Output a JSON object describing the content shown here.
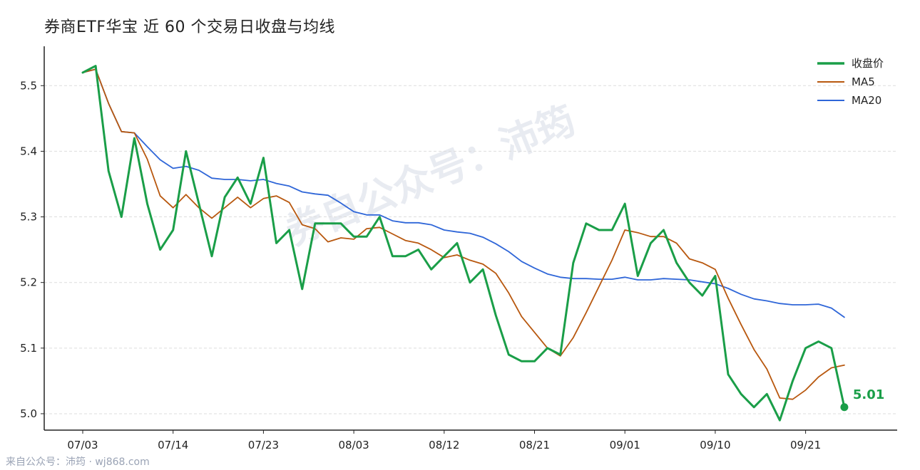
{
  "title": "券商ETF华宝 近 60 个交易日收盘与均线",
  "watermark": "券自公众号：沛筠",
  "footer": "来自公众号：沛筠 · wj868.com",
  "colors": {
    "close": "#1a9e48",
    "ma5": "#b8580f",
    "ma20": "#2f66d8",
    "axis": "#222222",
    "grid": "#dddddd"
  },
  "chart_data": {
    "type": "line",
    "title": "券商ETF华宝 近 60 个交易日收盘与均线",
    "xlabel": "",
    "ylabel": "",
    "ylim": [
      4.975,
      5.56
    ],
    "grid": "horizontal dashed",
    "legend_position": "top-right",
    "y_ticks": [
      5.0,
      5.1,
      5.2,
      5.3,
      5.4,
      5.5
    ],
    "y_tick_labels": [
      "5.0",
      "5.1",
      "5.2",
      "5.3",
      "5.4",
      "5.5"
    ],
    "x_ticks": [
      {
        "index": 0,
        "label": "07/03"
      },
      {
        "index": 7,
        "label": "07/14"
      },
      {
        "index": 14,
        "label": "07/23"
      },
      {
        "index": 21,
        "label": "08/03"
      },
      {
        "index": 28,
        "label": "08/12"
      },
      {
        "index": 35,
        "label": "08/21"
      },
      {
        "index": 42,
        "label": "09/01"
      },
      {
        "index": 49,
        "label": "09/10"
      },
      {
        "index": 56,
        "label": "09/21"
      }
    ],
    "last_value_label": "5.01",
    "series": [
      {
        "name": "收盘价",
        "color": "#1a9e48",
        "values": [
          5.52,
          5.53,
          5.37,
          5.3,
          5.42,
          5.32,
          5.25,
          5.28,
          5.4,
          5.32,
          5.24,
          5.33,
          5.36,
          5.32,
          5.39,
          5.26,
          5.28,
          5.19,
          5.29,
          5.29,
          5.29,
          5.27,
          5.27,
          5.3,
          5.24,
          5.24,
          5.25,
          5.22,
          5.24,
          5.26,
          5.2,
          5.22,
          5.15,
          5.09,
          5.08,
          5.08,
          5.1,
          5.09,
          5.23,
          5.29,
          5.28,
          5.28,
          5.32,
          5.21,
          5.26,
          5.28,
          5.23,
          5.2,
          5.18,
          5.21,
          5.06,
          5.03,
          5.01,
          5.03,
          4.99,
          5.05,
          5.1,
          5.11,
          5.1,
          5.01
        ]
      },
      {
        "name": "MA5",
        "color": "#b8580f",
        "values": [
          5.52,
          5.525,
          5.473,
          5.43,
          5.428,
          5.388,
          5.332,
          5.314,
          5.334,
          5.314,
          5.298,
          5.314,
          5.33,
          5.314,
          5.328,
          5.332,
          5.322,
          5.288,
          5.282,
          5.262,
          5.268,
          5.266,
          5.282,
          5.284,
          5.274,
          5.264,
          5.26,
          5.25,
          5.238,
          5.242,
          5.234,
          5.228,
          5.214,
          5.184,
          5.148,
          5.124,
          5.1,
          5.088,
          5.116,
          5.154,
          5.194,
          5.234,
          5.28,
          5.276,
          5.27,
          5.27,
          5.26,
          5.236,
          5.23,
          5.22,
          5.176,
          5.136,
          5.098,
          5.068,
          5.024,
          5.022,
          5.036,
          5.056,
          5.07,
          5.074
        ]
      },
      {
        "name": "MA20",
        "color": "#2f66d8",
        "values": [
          5.52,
          5.525,
          5.473,
          5.43,
          5.428,
          5.407,
          5.387,
          5.374,
          5.377,
          5.371,
          5.359,
          5.357,
          5.357,
          5.355,
          5.357,
          5.351,
          5.347,
          5.338,
          5.335,
          5.333,
          5.321,
          5.308,
          5.303,
          5.303,
          5.294,
          5.291,
          5.291,
          5.288,
          5.28,
          5.277,
          5.275,
          5.269,
          5.259,
          5.247,
          5.232,
          5.222,
          5.213,
          5.208,
          5.206,
          5.206,
          5.205,
          5.205,
          5.208,
          5.204,
          5.204,
          5.206,
          5.205,
          5.204,
          5.201,
          5.198,
          5.191,
          5.182,
          5.175,
          5.172,
          5.168,
          5.166,
          5.166,
          5.167,
          5.161,
          5.147
        ]
      }
    ]
  }
}
